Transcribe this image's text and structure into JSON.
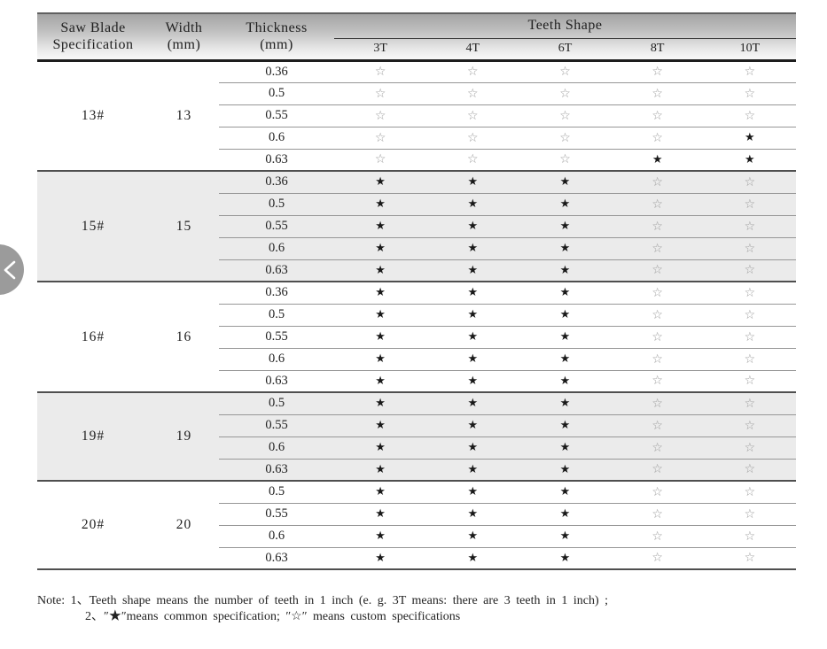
{
  "table": {
    "headers": {
      "spec_line1": "Saw Blade",
      "spec_line2": "Specification",
      "width_line1": "Width",
      "width_line2": "(mm)",
      "thickness_line1": "Thickness",
      "thickness_line2": "(mm)",
      "teeth_group": "Teeth Shape",
      "teeth_cols": [
        "3T",
        "4T",
        "6T",
        "8T",
        "10T"
      ]
    },
    "legend": {
      "filled": "★",
      "outline": "☆"
    },
    "sections": [
      {
        "spec": "13#",
        "width": "13",
        "shaded": false,
        "rows": [
          {
            "thickness": "0.36",
            "teeth": [
              "outline",
              "outline",
              "outline",
              "outline",
              "outline"
            ]
          },
          {
            "thickness": "0.5",
            "teeth": [
              "outline",
              "outline",
              "outline",
              "outline",
              "outline"
            ]
          },
          {
            "thickness": "0.55",
            "teeth": [
              "outline",
              "outline",
              "outline",
              "outline",
              "outline"
            ]
          },
          {
            "thickness": "0.6",
            "teeth": [
              "outline",
              "outline",
              "outline",
              "outline",
              "filled"
            ]
          },
          {
            "thickness": "0.63",
            "teeth": [
              "outline",
              "outline",
              "outline",
              "filled",
              "filled"
            ]
          }
        ]
      },
      {
        "spec": "15#",
        "width": "15",
        "shaded": true,
        "rows": [
          {
            "thickness": "0.36",
            "teeth": [
              "filled",
              "filled",
              "filled",
              "outline",
              "outline"
            ]
          },
          {
            "thickness": "0.5",
            "teeth": [
              "filled",
              "filled",
              "filled",
              "outline",
              "outline"
            ]
          },
          {
            "thickness": "0.55",
            "teeth": [
              "filled",
              "filled",
              "filled",
              "outline",
              "outline"
            ]
          },
          {
            "thickness": "0.6",
            "teeth": [
              "filled",
              "filled",
              "filled",
              "outline",
              "outline"
            ]
          },
          {
            "thickness": "0.63",
            "teeth": [
              "filled",
              "filled",
              "filled",
              "outline",
              "outline"
            ]
          }
        ]
      },
      {
        "spec": "16#",
        "width": "16",
        "shaded": false,
        "rows": [
          {
            "thickness": "0.36",
            "teeth": [
              "filled",
              "filled",
              "filled",
              "outline",
              "outline"
            ]
          },
          {
            "thickness": "0.5",
            "teeth": [
              "filled",
              "filled",
              "filled",
              "outline",
              "outline"
            ]
          },
          {
            "thickness": "0.55",
            "teeth": [
              "filled",
              "filled",
              "filled",
              "outline",
              "outline"
            ]
          },
          {
            "thickness": "0.6",
            "teeth": [
              "filled",
              "filled",
              "filled",
              "outline",
              "outline"
            ]
          },
          {
            "thickness": "0.63",
            "teeth": [
              "filled",
              "filled",
              "filled",
              "outline",
              "outline"
            ]
          }
        ]
      },
      {
        "spec": "19#",
        "width": "19",
        "shaded": true,
        "rows": [
          {
            "thickness": "0.5",
            "teeth": [
              "filled",
              "filled",
              "filled",
              "outline",
              "outline"
            ]
          },
          {
            "thickness": "0.55",
            "teeth": [
              "filled",
              "filled",
              "filled",
              "outline",
              "outline"
            ]
          },
          {
            "thickness": "0.6",
            "teeth": [
              "filled",
              "filled",
              "filled",
              "outline",
              "outline"
            ]
          },
          {
            "thickness": "0.63",
            "teeth": [
              "filled",
              "filled",
              "filled",
              "outline",
              "outline"
            ]
          }
        ]
      },
      {
        "spec": "20#",
        "width": "20",
        "shaded": false,
        "rows": [
          {
            "thickness": "0.5",
            "teeth": [
              "filled",
              "filled",
              "filled",
              "outline",
              "outline"
            ]
          },
          {
            "thickness": "0.55",
            "teeth": [
              "filled",
              "filled",
              "filled",
              "outline",
              "outline"
            ]
          },
          {
            "thickness": "0.6",
            "teeth": [
              "filled",
              "filled",
              "filled",
              "outline",
              "outline"
            ]
          },
          {
            "thickness": "0.63",
            "teeth": [
              "filled",
              "filled",
              "filled",
              "outline",
              "outline"
            ]
          }
        ]
      }
    ]
  },
  "note": {
    "line1": "Note: 1、Teeth shape means the number of teeth in 1 inch (e. g.  3T  means: there are 3 teeth in 1 inch) ;",
    "line2": "2、″★″means common specification;  ″☆″ means custom specifications"
  },
  "carousel": {
    "prev_icon": "chevron-left"
  },
  "colors": {
    "star_filled": "#191919",
    "star_outline": "#9b9b9b",
    "shaded_band": "#ebebeb",
    "nav_button": "#9b9b9b"
  }
}
